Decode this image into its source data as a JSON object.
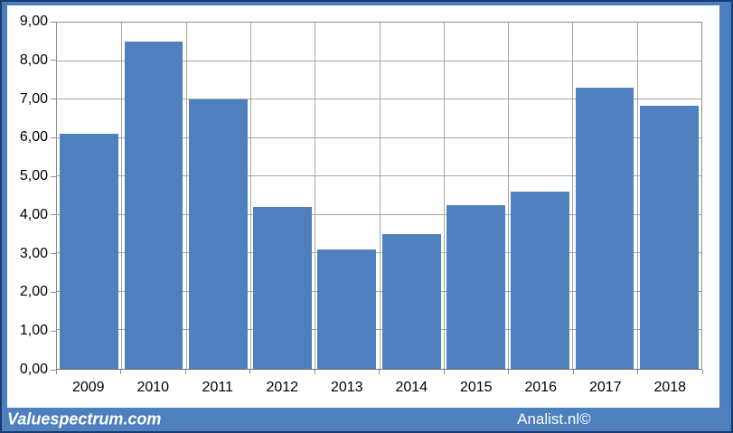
{
  "chart_data": {
    "type": "bar",
    "title": "",
    "xlabel": "",
    "ylabel": "",
    "categories": [
      "2009",
      "2010",
      "2011",
      "2012",
      "2013",
      "2014",
      "2015",
      "2016",
      "2017",
      "2018"
    ],
    "values": [
      6.1,
      8.5,
      7.0,
      4.2,
      3.1,
      3.5,
      4.25,
      4.6,
      7.3,
      6.85
    ],
    "ylim": [
      0,
      9
    ],
    "yticks": [
      {
        "value": 0,
        "label": "0,00"
      },
      {
        "value": 1,
        "label": "1,00"
      },
      {
        "value": 2,
        "label": "2,00"
      },
      {
        "value": 3,
        "label": "3,00"
      },
      {
        "value": 4,
        "label": "4,00"
      },
      {
        "value": 5,
        "label": "5,00"
      },
      {
        "value": 6,
        "label": "6,00"
      },
      {
        "value": 7,
        "label": "7,00"
      },
      {
        "value": 8,
        "label": "8,00"
      },
      {
        "value": 9,
        "label": "9,00"
      }
    ],
    "grid": true,
    "legend_position": "none",
    "bar_color": "#4e80bd",
    "gridline_color": "#a6a6a6",
    "axis_color": "#8f8f8f"
  },
  "branding": {
    "left_text": "Valuespectrum.com",
    "right_text": "Analist.nl©"
  },
  "colors": {
    "frame_fill": "#4b7ebc",
    "frame_border": "#1c3a6e",
    "footer_bg": "#4d80bd",
    "footer_text": "#ffffff"
  }
}
